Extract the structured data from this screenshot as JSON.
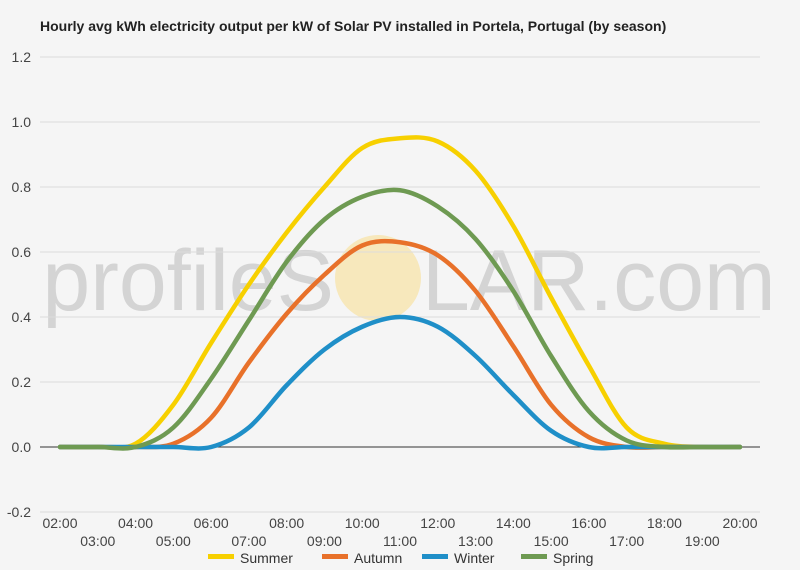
{
  "chart_data": {
    "type": "line",
    "title": "Hourly avg kWh electricity output per kW of Solar PV installed in Portela, Portugal (by season)",
    "xlabel": "",
    "ylabel": "",
    "x": [
      "02:00",
      "03:00",
      "04:00",
      "05:00",
      "06:00",
      "07:00",
      "08:00",
      "09:00",
      "10:00",
      "11:00",
      "12:00",
      "13:00",
      "14:00",
      "15:00",
      "16:00",
      "17:00",
      "18:00",
      "19:00",
      "20:00"
    ],
    "ylim": [
      -0.2,
      1.2
    ],
    "yticks": [
      "-0.2",
      "0.0",
      "0.2",
      "0.4",
      "0.6",
      "0.8",
      "1.0",
      "1.2"
    ],
    "grid": true,
    "legend_position": "bottom",
    "series": [
      {
        "name": "Summer",
        "color": "#f7d000",
        "values": [
          0,
          0,
          0.01,
          0.13,
          0.32,
          0.5,
          0.66,
          0.8,
          0.92,
          0.95,
          0.94,
          0.85,
          0.68,
          0.46,
          0.25,
          0.06,
          0.01,
          0,
          0
        ]
      },
      {
        "name": "Autumn",
        "color": "#e8712a",
        "values": [
          0,
          0,
          0,
          0.01,
          0.09,
          0.26,
          0.41,
          0.53,
          0.62,
          0.63,
          0.59,
          0.48,
          0.31,
          0.13,
          0.03,
          0,
          0,
          0,
          0
        ]
      },
      {
        "name": "Winter",
        "color": "#1f8fc8",
        "values": [
          0,
          0,
          0,
          0,
          0,
          0.06,
          0.19,
          0.3,
          0.37,
          0.4,
          0.37,
          0.28,
          0.16,
          0.05,
          0,
          0,
          0,
          0,
          0
        ]
      },
      {
        "name": "Spring",
        "color": "#6e9a52",
        "values": [
          0,
          0,
          0,
          0.06,
          0.21,
          0.39,
          0.57,
          0.7,
          0.77,
          0.79,
          0.74,
          0.64,
          0.48,
          0.28,
          0.11,
          0.02,
          0,
          0,
          0
        ]
      }
    ]
  },
  "watermark": {
    "text_left": "profileS",
    "text_right": "LAR.com"
  }
}
